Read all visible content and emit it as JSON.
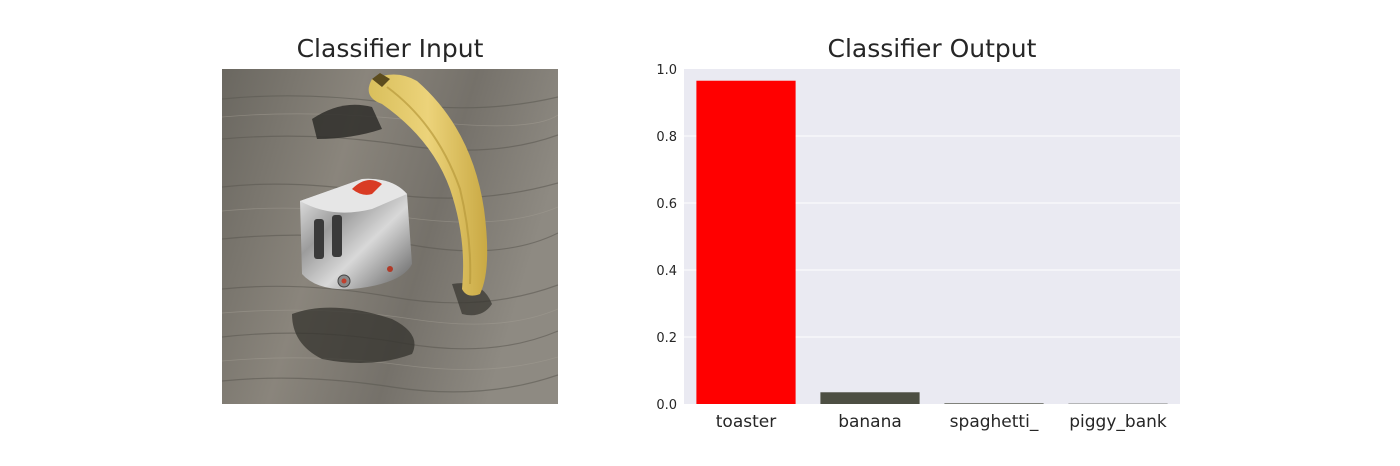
{
  "input_panel": {
    "title": "Classifier Input"
  },
  "output_panel": {
    "title": "Classifier Output"
  },
  "chart_data": {
    "type": "bar",
    "title": "Classifier Output",
    "xlabel": "",
    "ylabel": "",
    "categories": [
      "toaster",
      "banana",
      "spaghetti_",
      "piggy_bank"
    ],
    "values": [
      0.965,
      0.035,
      0.002,
      0.001
    ],
    "bar_colors": [
      "#ff0000",
      "#4d4f43",
      "#4d4f43",
      "#4d4f43"
    ],
    "ylim": [
      0,
      1.0
    ],
    "yticks": [
      0.0,
      0.2,
      0.4,
      0.6,
      0.8,
      1.0
    ],
    "ytick_labels": [
      "0.0",
      "0.2",
      "0.4",
      "0.6",
      "0.8",
      "1.0"
    ],
    "grid": true,
    "background_color": "#eaeaf2",
    "legend": "none"
  }
}
